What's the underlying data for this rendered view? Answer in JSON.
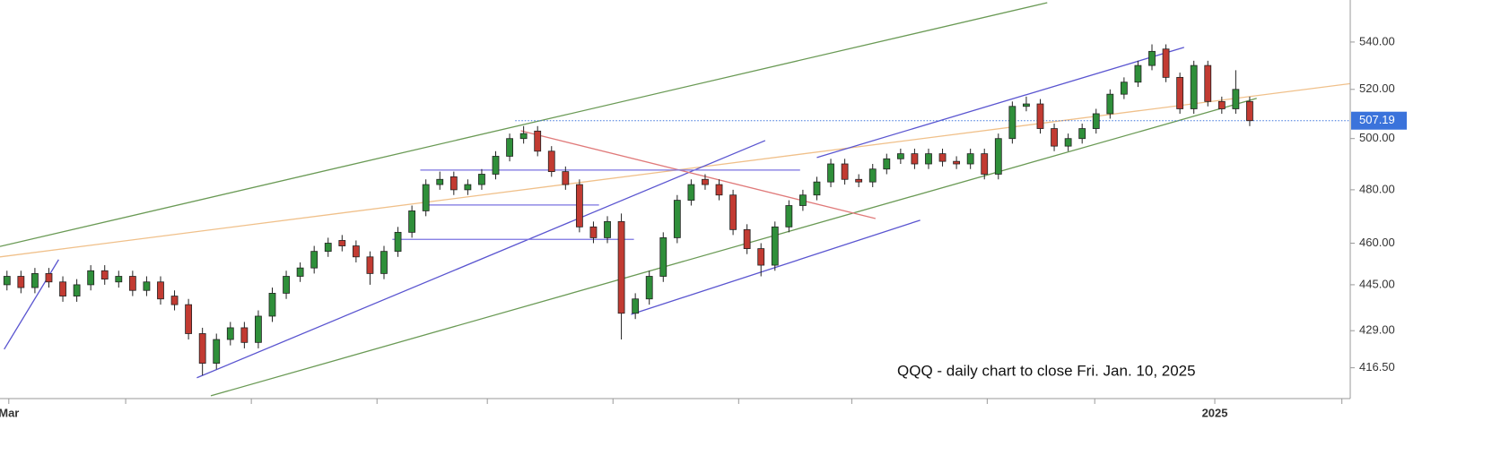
{
  "chart_data": {
    "type": "candlestick",
    "annotation": "QQQ - daily chart to close Fri. Jan. 10, 2025",
    "log_scale": true,
    "grid": false,
    "up_color": "#2f8f3a",
    "down_color": "#c23b32",
    "xlim": [
      -0.5,
      96.2
    ],
    "ylim": [
      406.4,
      558.4
    ],
    "yticks": [
      {
        "value": 416.5,
        "label": "416.50"
      },
      {
        "value": 429,
        "label": "429.00"
      },
      {
        "value": 445,
        "label": "445.00"
      },
      {
        "value": 460,
        "label": "460.00"
      },
      {
        "value": 480,
        "label": "480.00"
      },
      {
        "value": 500,
        "label": "500.00"
      },
      {
        "value": 520,
        "label": "520.00"
      },
      {
        "value": 540,
        "label": "540.00"
      }
    ],
    "xticks": [
      0.13,
      8.5,
      17.5,
      26.5,
      34.4,
      43.4,
      52.4,
      60.5,
      70.2,
      77.9,
      86.5,
      95.6
    ],
    "xtick_labels": [
      {
        "value": 0.13,
        "label": "Mar"
      },
      {
        "value": 86.5,
        "label": "2025"
      }
    ],
    "last_price": 507.19,
    "last_price_color": "#3b73db",
    "last_price_line_start": 36.4,
    "open": [
      445,
      448,
      444,
      449,
      446,
      441,
      445,
      450,
      446,
      448,
      443,
      446,
      441,
      438,
      428,
      418,
      426,
      430,
      425,
      434,
      442,
      448,
      451,
      457,
      461,
      459,
      455,
      449,
      457,
      464,
      472,
      482,
      485,
      480,
      482,
      486,
      493,
      500,
      503,
      495,
      487,
      482,
      466,
      462,
      468,
      435,
      440,
      448,
      462,
      476,
      484,
      482,
      478,
      465,
      458,
      452,
      466,
      474,
      478,
      483,
      490,
      484,
      483,
      488,
      492,
      494,
      490,
      494,
      491,
      490,
      494,
      486,
      500,
      513,
      514,
      504,
      497,
      500,
      504,
      510,
      518,
      523,
      530,
      537,
      525,
      512,
      530,
      515,
      512,
      515
    ],
    "high": [
      450,
      450,
      451,
      451,
      448,
      447,
      452,
      452,
      450,
      450,
      448,
      448,
      443,
      440,
      430,
      428,
      432,
      432,
      436,
      444,
      450,
      453,
      459,
      462,
      463,
      461,
      457,
      459,
      466,
      474,
      484,
      487,
      487,
      484,
      488,
      495,
      502,
      505,
      505,
      497,
      489,
      484,
      468,
      470,
      471,
      442,
      450,
      464,
      478,
      484,
      486,
      484,
      480,
      467,
      460,
      468,
      476,
      480,
      485,
      492,
      492,
      486,
      490,
      494,
      496,
      496,
      496,
      496,
      493,
      496,
      496,
      502,
      515,
      517,
      516,
      506,
      502,
      506,
      512,
      520,
      525,
      532,
      539,
      539,
      527,
      532,
      532,
      517,
      528,
      517
    ],
    "low": [
      443,
      442,
      442,
      444,
      439,
      439,
      443,
      445,
      444,
      441,
      441,
      438,
      436,
      426,
      414,
      416,
      424,
      423,
      423,
      432,
      440,
      446,
      449,
      455,
      457,
      453,
      445,
      447,
      455,
      462,
      470,
      480,
      478,
      478,
      480,
      484,
      491,
      498,
      493,
      485,
      480,
      464,
      460,
      460,
      426,
      433,
      438,
      446,
      460,
      474,
      480,
      476,
      463,
      456,
      448,
      450,
      464,
      472,
      476,
      481,
      482,
      481,
      481,
      486,
      490,
      488,
      488,
      489,
      488,
      488,
      484,
      484,
      498,
      511,
      502,
      495,
      495,
      498,
      502,
      508,
      516,
      521,
      528,
      523,
      510,
      510,
      513,
      510,
      510,
      505
    ],
    "close": [
      448,
      444,
      449,
      446,
      441,
      445,
      450,
      447,
      448,
      443,
      446,
      440,
      438,
      428,
      418,
      426,
      430,
      425,
      434,
      442,
      448,
      451,
      457,
      460,
      459,
      455,
      449,
      457,
      464,
      472,
      482,
      484,
      480,
      482,
      486,
      493,
      500,
      502,
      495,
      487,
      482,
      466,
      462,
      468,
      435,
      440,
      448,
      462,
      476,
      482,
      482,
      478,
      465,
      458,
      452,
      466,
      474,
      478,
      483,
      490,
      484,
      483,
      488,
      492,
      494,
      490,
      494,
      491,
      490,
      494,
      486,
      500,
      513,
      514,
      504,
      497,
      500,
      504,
      510,
      518,
      523,
      530,
      536,
      525,
      512,
      530,
      515,
      512,
      520,
      507.19
    ],
    "trendlines": [
      {
        "color": "#6a9a55",
        "x": [
          -0.5,
          74.5
        ],
        "y": [
          458.8,
          557.2
        ]
      },
      {
        "color": "#6a9a55",
        "x": [
          14.6,
          89.5
        ],
        "y": [
          407.3,
          516.3
        ]
      },
      {
        "color": "#f0c08a",
        "x": [
          -0.5,
          96.9
        ],
        "y": [
          455.0,
          522.9
        ]
      },
      {
        "color": "#5a55d0",
        "x": [
          13.6,
          54.3
        ],
        "y": [
          413.2,
          499.2
        ]
      },
      {
        "color": "#5a55d0",
        "x": [
          -0.2,
          3.7
        ],
        "y": [
          422.7,
          454.0
        ]
      },
      {
        "color": "#5a55d0",
        "x": [
          58.0,
          84.3
        ],
        "y": [
          492.5,
          537.7
        ]
      },
      {
        "color": "#5a55d0",
        "x": [
          44.7,
          65.4
        ],
        "y": [
          434.6,
          468.5
        ]
      },
      {
        "color": "#e07a7a",
        "x": [
          36.8,
          62.2
        ],
        "y": [
          503.1,
          469.1
        ]
      },
      {
        "color": "#7a72e0",
        "x": [
          29.6,
          56.8
        ],
        "y": [
          487.6,
          487.6
        ]
      },
      {
        "color": "#7a72e0",
        "x": [
          30.0,
          42.4
        ],
        "y": [
          474.2,
          474.2
        ]
      },
      {
        "color": "#7a72e0",
        "x": [
          27.6,
          44.9
        ],
        "y": [
          461.4,
          461.4
        ]
      }
    ]
  }
}
